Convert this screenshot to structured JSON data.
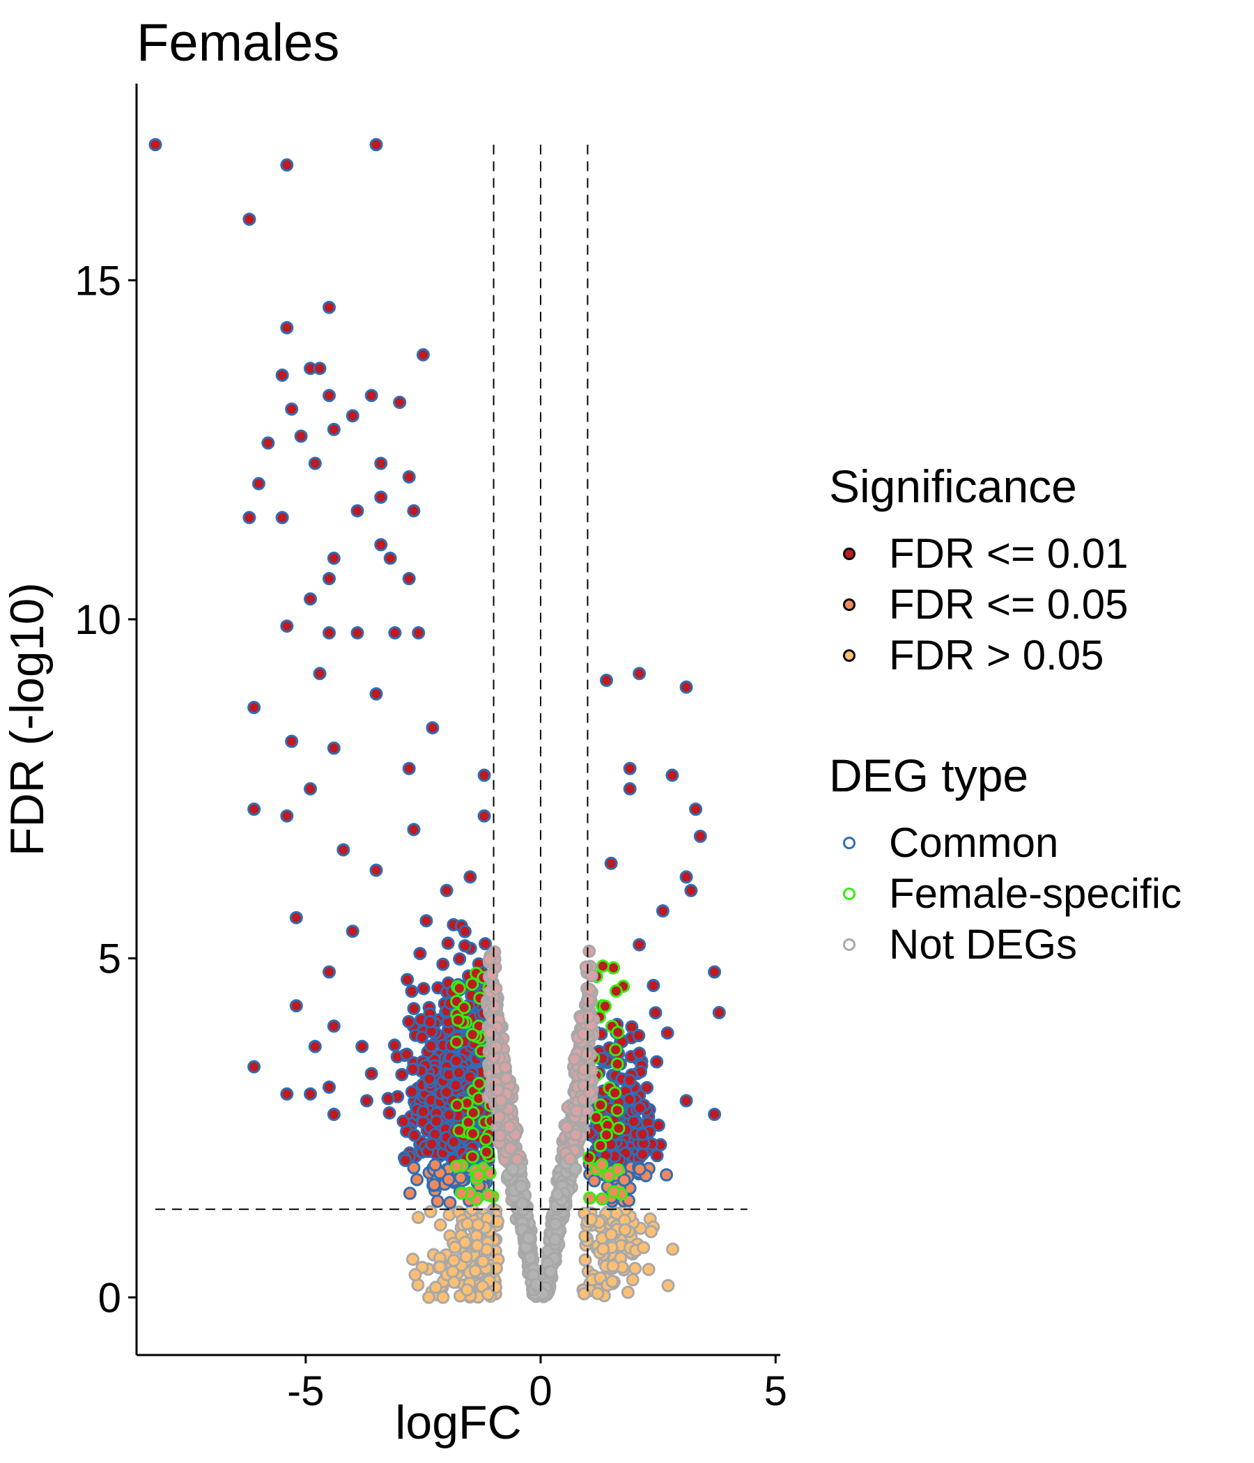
{
  "chart_data": {
    "type": "scatter",
    "title": "Females",
    "xlabel": "logFC",
    "ylabel": "FDR (-log10)",
    "xlim": [
      -8.6,
      5.1
    ],
    "ylim": [
      -0.85,
      17.9
    ],
    "x_ticks": [
      -5,
      0,
      5
    ],
    "x_tick_labels": [
      "-5",
      "0",
      "5"
    ],
    "y_ticks": [
      0,
      5,
      10,
      15
    ],
    "y_tick_labels": [
      "0",
      "5",
      "10",
      "15"
    ],
    "grid": false,
    "legend_position": "right",
    "reference_lines": {
      "vertical": [
        -1,
        0,
        1
      ],
      "horizontal": [
        1.3
      ]
    },
    "colors": {
      "fdr_0_01_fill": "#c0191f",
      "fdr_0_05_fill": "#f08a5d",
      "fdr_gt_0_05_fill": "#fdbf72",
      "common_outline": "#2f6db5",
      "female_specific_outline": "#33ee11",
      "not_deg_fill": "#b3b3b3",
      "not_deg_outline": "#a8a8a8"
    },
    "legends": [
      {
        "title": "Significance",
        "entries": [
          {
            "label": "FDR <= 0.01",
            "fill": "#c0191f",
            "stroke": "#000000"
          },
          {
            "label": "FDR <= 0.05",
            "fill": "#f08a5d",
            "stroke": "#000000"
          },
          {
            "label": "FDR > 0.05",
            "fill": "#fdbf72",
            "stroke": "#000000"
          }
        ]
      },
      {
        "title": "DEG type",
        "entries": [
          {
            "label": "Common",
            "fill": "none",
            "stroke": "#2f6db5"
          },
          {
            "label": "Female-specific",
            "fill": "none",
            "stroke": "#33ee11"
          },
          {
            "label": "Not DEGs",
            "fill": "none",
            "stroke": "#a8a8a8"
          }
        ]
      }
    ],
    "highlighted_points": [
      {
        "x": -8.2,
        "y": 17.0
      },
      {
        "x": -3.5,
        "y": 17.0
      },
      {
        "x": -5.4,
        "y": 16.7
      },
      {
        "x": -6.2,
        "y": 15.9
      },
      {
        "x": -4.5,
        "y": 14.6
      },
      {
        "x": -5.4,
        "y": 14.3
      },
      {
        "x": -2.5,
        "y": 13.9
      },
      {
        "x": -5.5,
        "y": 13.6
      },
      {
        "x": -4.9,
        "y": 13.7
      },
      {
        "x": -4.7,
        "y": 13.7
      },
      {
        "x": -3.6,
        "y": 13.3
      },
      {
        "x": -3.0,
        "y": 13.2
      },
      {
        "x": -4.5,
        "y": 13.3
      },
      {
        "x": -5.3,
        "y": 13.1
      },
      {
        "x": -4.0,
        "y": 13.0
      },
      {
        "x": -5.8,
        "y": 12.6
      },
      {
        "x": -5.1,
        "y": 12.7
      },
      {
        "x": -4.4,
        "y": 12.8
      },
      {
        "x": -6.0,
        "y": 12.0
      },
      {
        "x": -4.8,
        "y": 12.3
      },
      {
        "x": -3.4,
        "y": 12.3
      },
      {
        "x": -2.8,
        "y": 12.1
      },
      {
        "x": -6.2,
        "y": 11.5
      },
      {
        "x": -5.5,
        "y": 11.5
      },
      {
        "x": -3.9,
        "y": 11.6
      },
      {
        "x": -3.4,
        "y": 11.8
      },
      {
        "x": -2.7,
        "y": 11.6
      },
      {
        "x": -3.4,
        "y": 11.1
      },
      {
        "x": -4.4,
        "y": 10.9
      },
      {
        "x": -3.2,
        "y": 10.9
      },
      {
        "x": -4.5,
        "y": 10.6
      },
      {
        "x": -2.8,
        "y": 10.6
      },
      {
        "x": -4.9,
        "y": 10.3
      },
      {
        "x": -5.4,
        "y": 9.9
      },
      {
        "x": -4.5,
        "y": 9.8
      },
      {
        "x": -3.9,
        "y": 9.8
      },
      {
        "x": -3.1,
        "y": 9.8
      },
      {
        "x": -2.6,
        "y": 9.8
      },
      {
        "x": -4.7,
        "y": 9.2
      },
      {
        "x": -6.1,
        "y": 8.7
      },
      {
        "x": -3.5,
        "y": 8.9
      },
      {
        "x": -2.3,
        "y": 8.4
      },
      {
        "x": -5.3,
        "y": 8.2
      },
      {
        "x": -4.4,
        "y": 8.1
      },
      {
        "x": -2.8,
        "y": 7.8
      },
      {
        "x": -4.9,
        "y": 7.5
      },
      {
        "x": -1.2,
        "y": 7.7
      },
      {
        "x": -6.1,
        "y": 7.2
      },
      {
        "x": -5.4,
        "y": 7.1
      },
      {
        "x": -1.2,
        "y": 7.1
      },
      {
        "x": -4.2,
        "y": 6.6
      },
      {
        "x": -2.7,
        "y": 6.9
      },
      {
        "x": -3.5,
        "y": 6.3
      },
      {
        "x": -5.2,
        "y": 5.6
      },
      {
        "x": -4.0,
        "y": 5.4
      },
      {
        "x": -2.0,
        "y": 6.0
      },
      {
        "x": -4.5,
        "y": 4.8
      },
      {
        "x": -5.2,
        "y": 4.3
      },
      {
        "x": -4.4,
        "y": 4.0
      },
      {
        "x": -4.8,
        "y": 3.7
      },
      {
        "x": -3.8,
        "y": 3.7
      },
      {
        "x": -6.1,
        "y": 3.4
      },
      {
        "x": -3.6,
        "y": 3.3
      },
      {
        "x": -5.4,
        "y": 3.0
      },
      {
        "x": -4.9,
        "y": 3.0
      },
      {
        "x": -4.5,
        "y": 3.1
      },
      {
        "x": -4.4,
        "y": 2.7
      },
      {
        "x": -3.7,
        "y": 2.9
      },
      {
        "x": -1.5,
        "y": 6.2
      },
      {
        "x": 1.4,
        "y": 9.1
      },
      {
        "x": 2.1,
        "y": 9.2
      },
      {
        "x": 3.1,
        "y": 9.0
      },
      {
        "x": 1.9,
        "y": 7.8
      },
      {
        "x": 2.8,
        "y": 7.7
      },
      {
        "x": 1.9,
        "y": 7.5
      },
      {
        "x": 3.3,
        "y": 7.2
      },
      {
        "x": 3.4,
        "y": 6.8
      },
      {
        "x": 1.5,
        "y": 6.4
      },
      {
        "x": 3.1,
        "y": 6.2
      },
      {
        "x": 3.2,
        "y": 6.0
      },
      {
        "x": 3.7,
        "y": 4.8
      },
      {
        "x": 3.8,
        "y": 4.2
      },
      {
        "x": 3.7,
        "y": 2.7
      },
      {
        "x": 3.1,
        "y": 2.9
      },
      {
        "x": 2.6,
        "y": 5.7
      },
      {
        "x": 2.1,
        "y": 5.2
      },
      {
        "x": 2.4,
        "y": 4.6
      },
      {
        "x": 2.7,
        "y": 3.9
      },
      {
        "x": 2.1,
        "y": 3.6
      },
      {
        "x": 1.9,
        "y": 3.2
      }
    ]
  }
}
